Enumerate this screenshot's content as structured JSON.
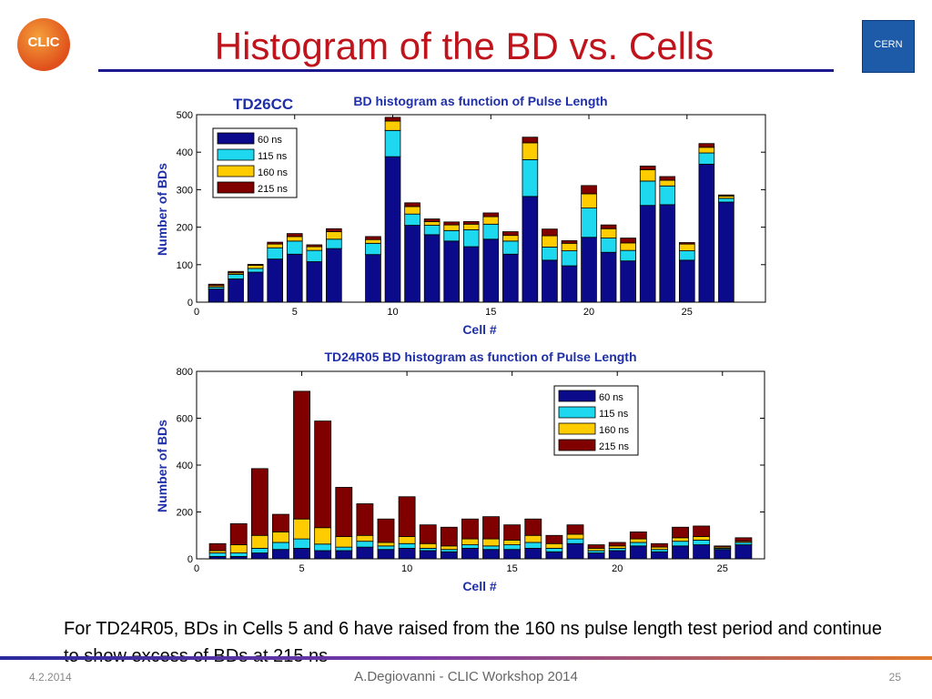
{
  "slide": {
    "title": "Histogram of the BD vs. Cells",
    "clic_logo_text": "CLIC",
    "cern_logo_text": "CERN",
    "caption": "For TD24R05, BDs in Cells 5 and 6 have raised from the 160 ns pulse length test period and continue to show excess of BDs at 215 ns",
    "footer_date": "4.2.2014",
    "footer_center": "A.Degiovanni - CLIC Workshop 2014",
    "footer_page": "25"
  },
  "colors": {
    "60 ns": "#0a0a8a",
    "115 ns": "#1ed8f0",
    "160 ns": "#ffcc00",
    "215 ns": "#800000",
    "accent_title": "#c0141c",
    "axis_label": "#1f2fa8"
  },
  "chart_data": [
    {
      "type": "bar",
      "stacked": true,
      "label_left": "TD26CC",
      "title": "BD histogram as function of Pulse Length",
      "xlabel": "Cell #",
      "ylabel": "Number of BDs",
      "xlim": [
        0,
        29
      ],
      "ylim": [
        0,
        500
      ],
      "xticks": [
        0,
        5,
        10,
        15,
        20,
        25
      ],
      "yticks": [
        0,
        100,
        200,
        300,
        400,
        500
      ],
      "legend_position": "top-left",
      "categories": [
        1,
        2,
        3,
        4,
        5,
        6,
        7,
        9,
        10,
        11,
        12,
        13,
        14,
        15,
        16,
        17,
        18,
        19,
        20,
        21,
        22,
        23,
        24,
        25,
        26,
        27
      ],
      "series": [
        {
          "name": "60 ns",
          "values": [
            35,
            62,
            80,
            115,
            128,
            108,
            143,
            127,
            388,
            205,
            180,
            163,
            148,
            168,
            128,
            282,
            112,
            97,
            173,
            133,
            110,
            258,
            260,
            112,
            368,
            267
          ]
        },
        {
          "name": "115 ns",
          "values": [
            5,
            12,
            10,
            30,
            35,
            30,
            25,
            30,
            70,
            30,
            25,
            28,
            45,
            40,
            35,
            98,
            35,
            40,
            78,
            38,
            28,
            65,
            50,
            25,
            30,
            10
          ]
        },
        {
          "name": "160 ns",
          "values": [
            4,
            4,
            8,
            10,
            12,
            10,
            20,
            10,
            25,
            20,
            10,
            15,
            15,
            20,
            15,
            45,
            30,
            20,
            38,
            25,
            20,
            30,
            15,
            18,
            15,
            6
          ]
        },
        {
          "name": "215 ns",
          "values": [
            4,
            4,
            3,
            5,
            8,
            5,
            8,
            8,
            10,
            10,
            7,
            8,
            7,
            10,
            10,
            15,
            18,
            7,
            22,
            10,
            13,
            10,
            10,
            4,
            10,
            3
          ]
        }
      ]
    },
    {
      "type": "bar",
      "stacked": true,
      "title": "TD24R05 BD histogram as function of Pulse Length",
      "xlabel": "Cell #",
      "ylabel": "Number of BDs",
      "xlim": [
        0,
        27
      ],
      "ylim": [
        0,
        800
      ],
      "xticks": [
        0,
        5,
        10,
        15,
        20,
        25
      ],
      "yticks": [
        0,
        200,
        400,
        600,
        800
      ],
      "legend_position": "top-right",
      "categories": [
        1,
        2,
        3,
        4,
        5,
        6,
        7,
        8,
        9,
        10,
        11,
        12,
        13,
        14,
        15,
        16,
        17,
        18,
        19,
        20,
        21,
        22,
        23,
        24,
        25,
        26
      ],
      "series": [
        {
          "name": "60 ns",
          "values": [
            10,
            10,
            25,
            40,
            45,
            35,
            35,
            50,
            40,
            45,
            35,
            30,
            45,
            40,
            40,
            45,
            30,
            65,
            25,
            35,
            55,
            30,
            55,
            60,
            40,
            60
          ]
        },
        {
          "name": "115 ns",
          "values": [
            15,
            15,
            20,
            30,
            40,
            28,
            15,
            25,
            15,
            20,
            10,
            10,
            15,
            15,
            20,
            25,
            15,
            20,
            10,
            10,
            15,
            10,
            20,
            20,
            5,
            10
          ]
        },
        {
          "name": "160 ns",
          "values": [
            10,
            35,
            55,
            45,
            85,
            70,
            45,
            25,
            15,
            30,
            20,
            15,
            25,
            30,
            20,
            30,
            20,
            20,
            10,
            10,
            15,
            10,
            15,
            15,
            5,
            5
          ]
        },
        {
          "name": "215 ns",
          "values": [
            30,
            90,
            285,
            75,
            545,
            455,
            210,
            135,
            100,
            170,
            80,
            80,
            85,
            95,
            65,
            70,
            35,
            40,
            15,
            15,
            30,
            15,
            45,
            45,
            5,
            15
          ]
        }
      ]
    }
  ]
}
